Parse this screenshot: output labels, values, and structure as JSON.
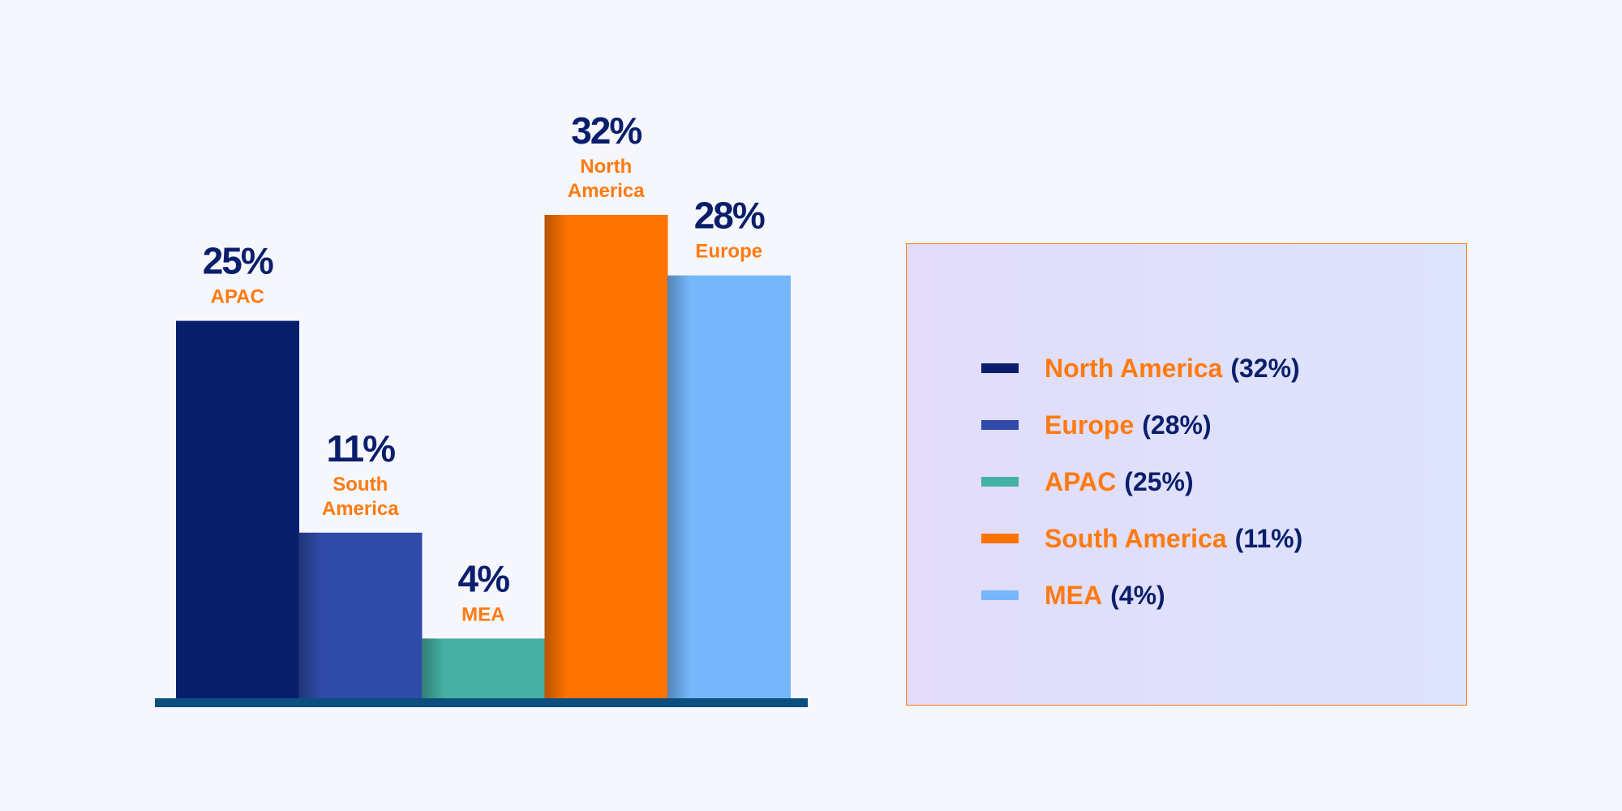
{
  "colors": {
    "label_pct": "#0a1f6b",
    "label_region": "#ff7a10",
    "baseline": "#0b4f7f",
    "legend_border": "#ff7a10"
  },
  "chart_data": {
    "type": "bar",
    "title": "",
    "xlabel": "",
    "ylabel": "",
    "ylim": [
      0,
      32
    ],
    "grid": false,
    "legend_placement": "right",
    "bars": [
      {
        "category": "APAC",
        "value": 25,
        "value_label": "25%",
        "color": "#0a1f6b"
      },
      {
        "category": "South America",
        "value": 11,
        "value_label": "11%",
        "color": "#2f4aa8"
      },
      {
        "category": "MEA",
        "value": 4,
        "value_label": "4%",
        "color": "#45b0a3"
      },
      {
        "category": "North America",
        "value": 32,
        "value_label": "32%",
        "color": "#ff7300"
      },
      {
        "category": "Europe",
        "value": 28,
        "value_label": "28%",
        "color": "#76b7fb"
      }
    ],
    "legend": [
      {
        "name": "North America",
        "value_text": "(32%)",
        "color": "#0a1f6b"
      },
      {
        "name": "Europe",
        "value_text": "(28%)",
        "color": "#2f4aa8"
      },
      {
        "name": "APAC",
        "value_text": "(25%)",
        "color": "#45b0a3"
      },
      {
        "name": "South America",
        "value_text": "(11%)",
        "color": "#ff7300"
      },
      {
        "name": "MEA",
        "value_text": "(4%)",
        "color": "#76b7fb"
      }
    ]
  }
}
